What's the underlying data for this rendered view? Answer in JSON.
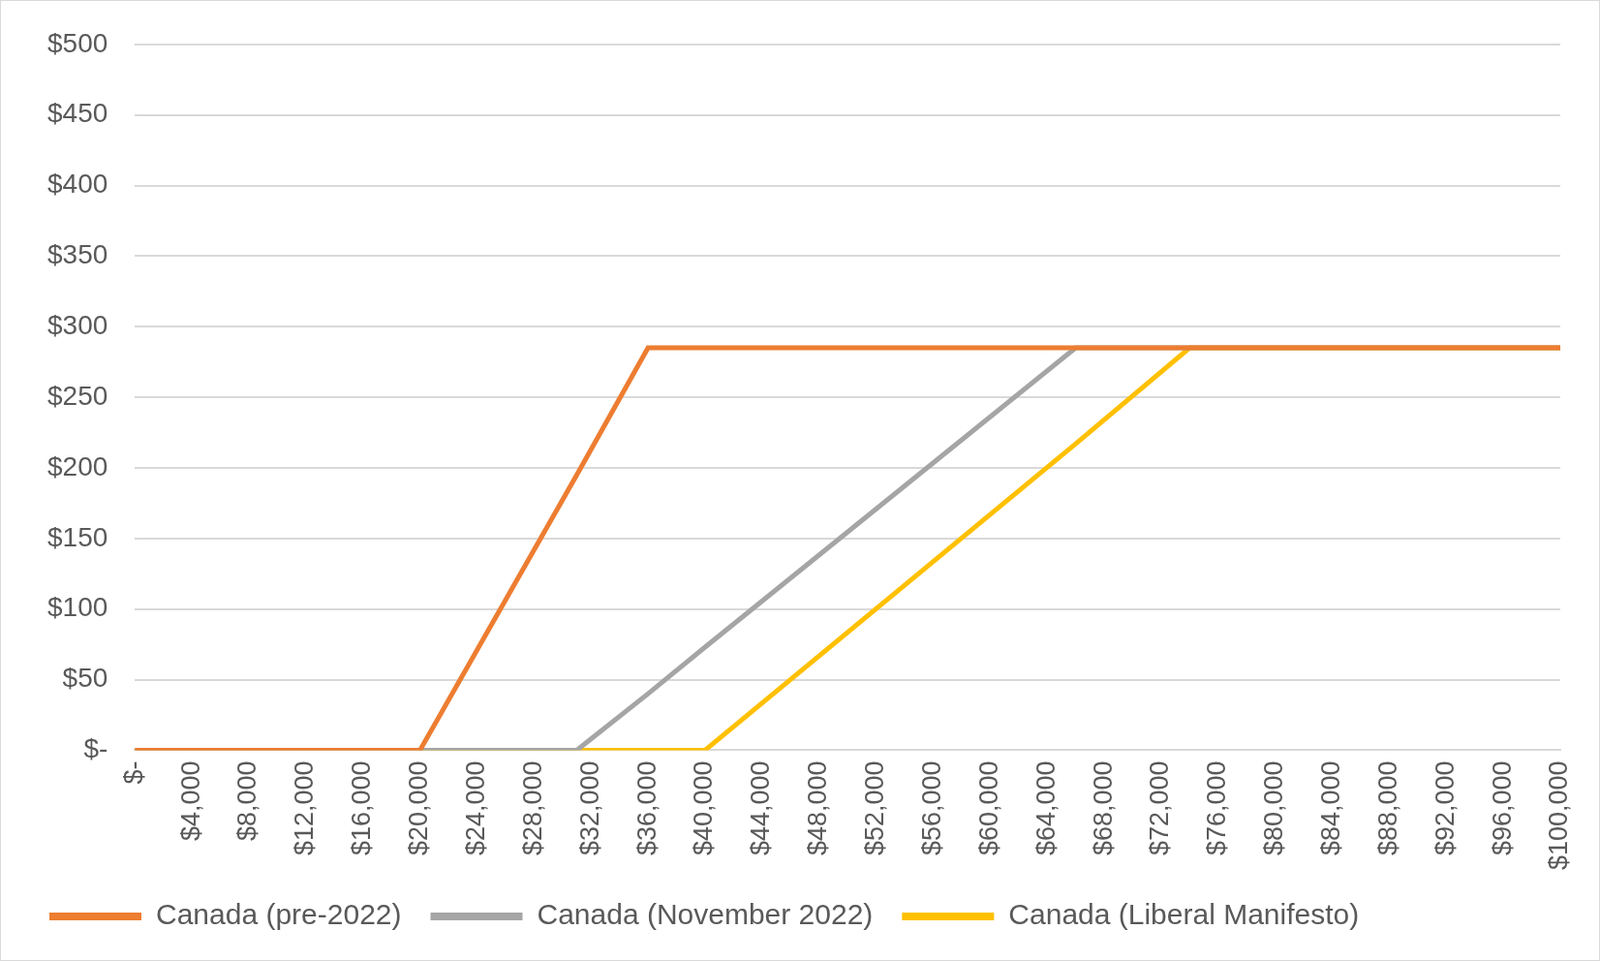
{
  "chart_data": {
    "type": "line",
    "x": [
      0,
      20000,
      31000,
      32000,
      36000,
      40000,
      66000,
      74000,
      100000
    ],
    "series": [
      {
        "name": "Canada (pre-2022)",
        "color": "#ed7d31",
        "values": [
          0,
          0,
          195,
          213,
          285,
          285,
          285,
          285,
          285
        ]
      },
      {
        "name": "Canada (November 2022)",
        "color": "#a5a5a5",
        "values": [
          0,
          0,
          0,
          8,
          40,
          73,
          285,
          285,
          285
        ]
      },
      {
        "name": "Canada (Liberal Manifesto)",
        "color": "#ffc000",
        "values": [
          0,
          0,
          0,
          0,
          0,
          0,
          217,
          285,
          285
        ]
      }
    ],
    "xlim": [
      0,
      100000
    ],
    "xticks": [
      {
        "value": 0,
        "label": "$-"
      },
      {
        "value": 4000,
        "label": "$4,000"
      },
      {
        "value": 8000,
        "label": "$8,000"
      },
      {
        "value": 12000,
        "label": "$12,000"
      },
      {
        "value": 16000,
        "label": "$16,000"
      },
      {
        "value": 20000,
        "label": "$20,000"
      },
      {
        "value": 24000,
        "label": "$24,000"
      },
      {
        "value": 28000,
        "label": "$28,000"
      },
      {
        "value": 32000,
        "label": "$32,000"
      },
      {
        "value": 36000,
        "label": "$36,000"
      },
      {
        "value": 40000,
        "label": "$40,000"
      },
      {
        "value": 44000,
        "label": "$44,000"
      },
      {
        "value": 48000,
        "label": "$48,000"
      },
      {
        "value": 52000,
        "label": "$52,000"
      },
      {
        "value": 56000,
        "label": "$56,000"
      },
      {
        "value": 60000,
        "label": "$60,000"
      },
      {
        "value": 64000,
        "label": "$64,000"
      },
      {
        "value": 68000,
        "label": "$68,000"
      },
      {
        "value": 72000,
        "label": "$72,000"
      },
      {
        "value": 76000,
        "label": "$76,000"
      },
      {
        "value": 80000,
        "label": "$80,000"
      },
      {
        "value": 84000,
        "label": "$84,000"
      },
      {
        "value": 88000,
        "label": "$88,000"
      },
      {
        "value": 92000,
        "label": "$92,000"
      },
      {
        "value": 96000,
        "label": "$96,000"
      },
      {
        "value": 100000,
        "label": "$100,000"
      }
    ],
    "ylim": [
      0,
      500
    ],
    "yticks": [
      {
        "value": 0,
        "label": "$-"
      },
      {
        "value": 50,
        "label": "$50"
      },
      {
        "value": 100,
        "label": "$100"
      },
      {
        "value": 150,
        "label": "$150"
      },
      {
        "value": 200,
        "label": "$200"
      },
      {
        "value": 250,
        "label": "$250"
      },
      {
        "value": 300,
        "label": "$300"
      },
      {
        "value": 350,
        "label": "$350"
      },
      {
        "value": 400,
        "label": "$400"
      },
      {
        "value": 450,
        "label": "$450"
      },
      {
        "value": 500,
        "label": "$500"
      }
    ],
    "grid": true,
    "legend": "bottom",
    "marker": "none"
  }
}
